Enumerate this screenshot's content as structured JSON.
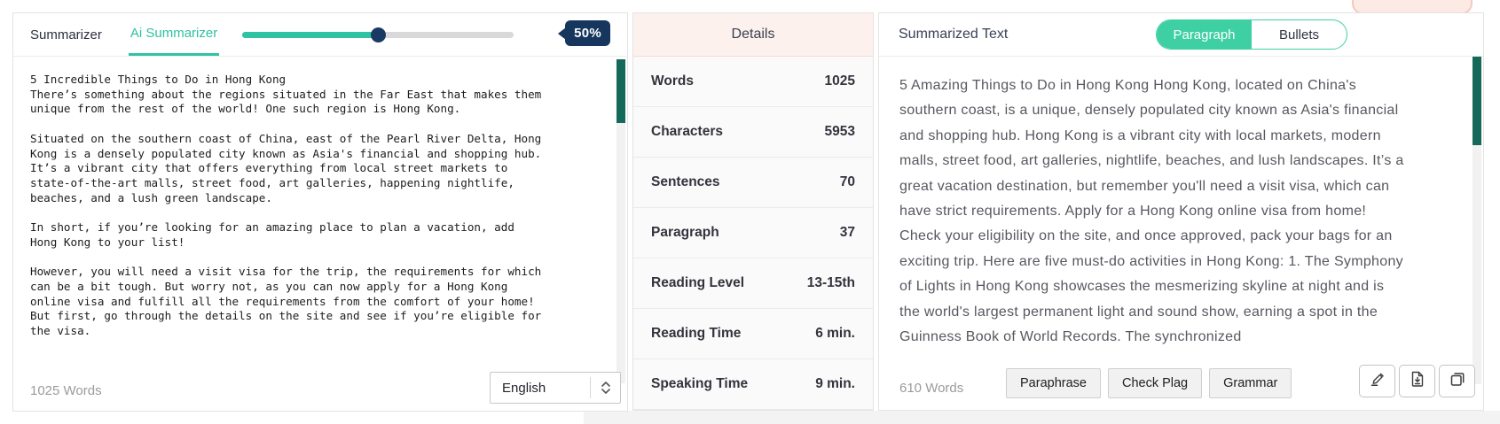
{
  "colors": {
    "accent_teal": "#2fc2a3",
    "toggle_green": "#3ed0a2",
    "badge_navy": "#16365e",
    "scrollbar_green": "#15695a",
    "details_header_bg": "#fdf1ee"
  },
  "left_panel": {
    "tabs": [
      {
        "label": "Summarizer",
        "active": false
      },
      {
        "label": "Ai Summarizer",
        "active": true
      }
    ],
    "slider": {
      "percent": 50,
      "value_label": "50%"
    },
    "input_text": "5 Incredible Things to Do in Hong Kong\nThere’s something about the regions situated in the Far East that makes them\nunique from the rest of the world! One such region is Hong Kong.\n\nSituated on the southern coast of China, east of the Pearl River Delta, Hong\nKong is a densely populated city known as Asia's financial and shopping hub.\nIt’s a vibrant city that offers everything from local street markets to\nstate-of-the-art malls, street food, art galleries, happening nightlife,\nbeaches, and a lush green landscape.\n\nIn short, if you’re looking for an amazing place to plan a vacation, add\nHong Kong to your list!\n\nHowever, you will need a visit visa for the trip, the requirements for which\ncan be a bit tough. But worry not, as you can now apply for a Hong Kong\nonline visa and fulfill all the requirements from the comfort of your home!\nBut first, go through the details on the site and see if you’re eligible for\nthe visa.",
    "word_count": "1025 Words",
    "language_select": {
      "value": "English"
    }
  },
  "details_panel": {
    "title": "Details",
    "rows": [
      {
        "label": "Words",
        "value": "1025"
      },
      {
        "label": "Characters",
        "value": "5953"
      },
      {
        "label": "Sentences",
        "value": "70"
      },
      {
        "label": "Paragraph",
        "value": "37"
      },
      {
        "label": "Reading Level",
        "value": "13-15th"
      },
      {
        "label": "Reading Time",
        "value": "6 min."
      },
      {
        "label": "Speaking Time",
        "value": "9 min."
      }
    ]
  },
  "summary_panel": {
    "title": "Summarized Text",
    "view_toggle": [
      {
        "label": "Paragraph",
        "active": true
      },
      {
        "label": "Bullets",
        "active": false
      }
    ],
    "summary_text": "5 Amazing Things to Do in Hong Kong Hong Kong, located on China's southern coast, is a unique, densely populated city known as Asia's financial and shopping hub. Hong Kong is a vibrant city with local markets, modern malls, street food, art galleries, nightlife, beaches, and lush landscapes. It’s a great vacation destination, but remember you'll need a visit visa, which can have strict requirements. Apply for a Hong Kong online visa from home! Check your eligibility on the site, and once approved, pack your bags for an exciting trip. Here are five must-do activities in Hong Kong: 1. The Symphony of Lights in Hong Kong showcases the mesmerizing skyline at night and is the world's largest permanent light and sound show, earning a spot in the Guinness Book of World Records. The synchronized",
    "word_count": "610 Words",
    "action_buttons": [
      "Paraphrase",
      "Check Plag",
      "Grammar"
    ],
    "icon_buttons": [
      "highlighter-icon",
      "download-icon",
      "copy-icon"
    ]
  }
}
